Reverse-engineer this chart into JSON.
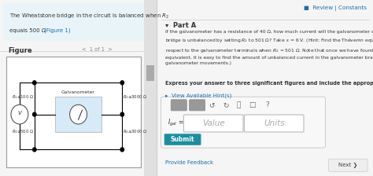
{
  "bg_color": "#f5f5f5",
  "right_bg": "#ffffff",
  "left_panel_bg": "#ffffff",
  "header_bg": "#e8f4f8",
  "figure_label": "Figure",
  "page_label": "1 of 1",
  "review_text": "■  Review | Constants",
  "review_color": "#1a6eb5",
  "part_a_label": "▾  Part A",
  "bold_text": "Express your answer to three significant figures and include the appropriate units.",
  "hint_text": "▸  View Available Hint(s)",
  "hint_color": "#1a6eb5",
  "value_placeholder": "Value",
  "units_placeholder": "Units",
  "submit_text": "Submit",
  "submit_bg": "#1a8fa0",
  "submit_color": "#ffffff",
  "feedback_text": "Provide Feedback",
  "next_text": "Next ❯",
  "divider_color": "#cccccc",
  "circuit_bg": "#d6eaf8",
  "galv_label": "Galvanometer"
}
